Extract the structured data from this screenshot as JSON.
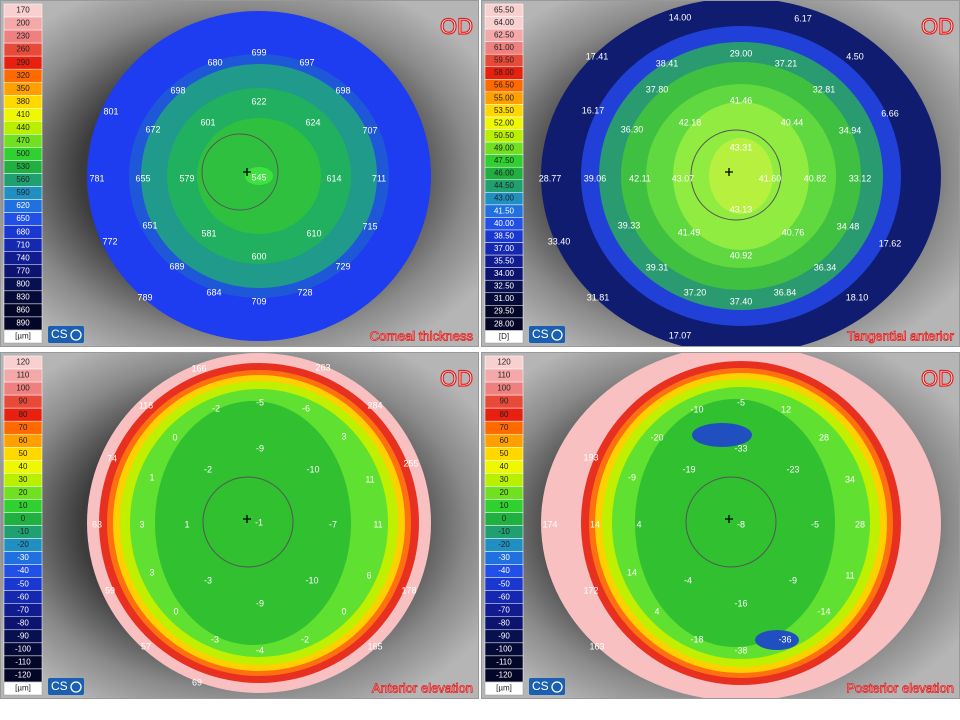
{
  "panels": [
    {
      "eye": "OD",
      "title": "Corneal thickness",
      "logo": "CS",
      "scale": {
        "labels": [
          "170",
          "200",
          "230",
          "260",
          "290",
          "320",
          "350",
          "380",
          "410",
          "440",
          "470",
          "500",
          "530",
          "560",
          "590",
          "620",
          "650",
          "680",
          "710",
          "740",
          "770",
          "800",
          "830",
          "860",
          "890"
        ],
        "unit": "[µm]"
      },
      "map_labels": [
        "699",
        "680",
        "697",
        "698",
        "698",
        "622",
        "801",
        "672",
        "601",
        "624",
        "707",
        "545",
        "579",
        "655",
        "614",
        "781",
        "711",
        "651",
        "581",
        "610",
        "715",
        "772",
        "600",
        "689",
        "729",
        "684",
        "789",
        "709",
        "728"
      ]
    },
    {
      "eye": "OD",
      "title": "Tangential anterior",
      "logo": "CS",
      "scale": {
        "labels": [
          "65.50",
          "64.00",
          "62.50",
          "61.00",
          "59.50",
          "58.00",
          "56.50",
          "55.00",
          "53.50",
          "52.00",
          "50.50",
          "49.00",
          "47.50",
          "46.00",
          "44.50",
          "43.00",
          "41.50",
          "40.00",
          "38.50",
          "37.00",
          "35.50",
          "34.00",
          "32.50",
          "31.00",
          "29.50",
          "28.00"
        ],
        "unit": "[D]"
      },
      "map_labels": [
        "14.00",
        "6.17",
        "17.41",
        "38.41",
        "29.00",
        "37.21",
        "4.50",
        "37.80",
        "41.46",
        "32.81",
        "16.17",
        "36.30",
        "42.18",
        "40.44",
        "34.94",
        "6.66",
        "43.31",
        "28.77",
        "39.06",
        "42.11",
        "43.07",
        "41.60",
        "40.82",
        "33.12",
        "43.13",
        "39.33",
        "41.49",
        "40.76",
        "34.48",
        "33.40",
        "17.62",
        "40.92",
        "39.31",
        "36.34",
        "37.20",
        "37.40",
        "36.84",
        "31.81",
        "18.10",
        "17.07"
      ]
    },
    {
      "eye": "OD",
      "title": "Anterior elevation",
      "logo": "CS",
      "scale": {
        "labels": [
          "120",
          "110",
          "100",
          "90",
          "80",
          "70",
          "60",
          "50",
          "40",
          "30",
          "20",
          "10",
          "0",
          "-10",
          "-20",
          "-30",
          "-40",
          "-50",
          "-60",
          "-70",
          "-80",
          "-90",
          "-100",
          "-110",
          "-120"
        ],
        "unit": "[µm]"
      },
      "map_labels": [
        "166",
        "263",
        "118",
        "-2",
        "-5",
        "-6",
        "284",
        "0",
        "-9",
        "3",
        "74",
        "-2",
        "-10",
        "255",
        "1",
        "11",
        "63",
        "3",
        "1",
        "-1",
        "-7",
        "11",
        "3",
        "-3",
        "-10",
        "6",
        "59",
        "178",
        "0",
        "-9",
        "0",
        "-3",
        "-2",
        "-4",
        "57",
        "165",
        "69"
      ]
    },
    {
      "eye": "OD",
      "title": "Posterior elevation",
      "logo": "CS",
      "scale": {
        "labels": [
          "120",
          "110",
          "100",
          "90",
          "80",
          "70",
          "60",
          "50",
          "40",
          "30",
          "20",
          "10",
          "0",
          "-10",
          "-20",
          "-30",
          "-40",
          "-50",
          "-60",
          "-70",
          "-80",
          "-90",
          "-100",
          "-110",
          "-120"
        ],
        "unit": "[µm]"
      },
      "map_labels": [
        "-5",
        "-10",
        "12",
        "-20",
        "-33",
        "28",
        "193",
        "-19",
        "-23",
        "34",
        "-9",
        "174",
        "14",
        "4",
        "-8",
        "-5",
        "28",
        "14",
        "-4",
        "-9",
        "11",
        "172",
        "4",
        "-16",
        "-14",
        "-18",
        "-36",
        "163",
        "-38"
      ]
    }
  ]
}
